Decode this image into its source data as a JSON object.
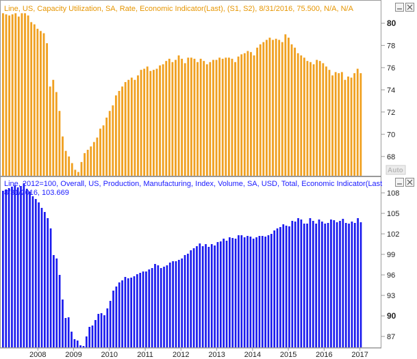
{
  "chart_data": [
    {
      "type": "bar",
      "legend": "Line, US, Capacity Utilization, SA, Rate, Economic Indicator(Last), (S1, S2), 8/31/2016, 75.500, N/A, N/A",
      "color": "#f0a020",
      "y_ticks": [
        "68",
        "70",
        "72",
        "74",
        "76",
        "78",
        "80"
      ],
      "highlighted_tick": "80",
      "ylim": [
        66.2,
        81.6
      ],
      "auto_label": "Auto",
      "values": [
        80.9,
        80.8,
        80.7,
        80.8,
        80.9,
        80.6,
        80.9,
        80.9,
        80.7,
        80.1,
        79.9,
        79.5,
        79.3,
        79.1,
        78.2,
        74.3,
        74.9,
        73.8,
        72.1,
        69.8,
        68.5,
        68.0,
        67.4,
        66.8,
        66.6,
        67.5,
        68.3,
        68.6,
        68.9,
        69.3,
        69.7,
        70.5,
        70.8,
        71.5,
        72.1,
        72.6,
        73.5,
        73.9,
        74.3,
        74.7,
        74.9,
        75.1,
        74.9,
        75.3,
        75.8,
        75.9,
        76.1,
        75.7,
        75.8,
        75.9,
        76.2,
        76.3,
        76.6,
        76.8,
        76.5,
        76.7,
        77.1,
        76.8,
        76.4,
        76.9,
        76.9,
        76.8,
        76.5,
        76.8,
        76.6,
        76.3,
        76.5,
        76.7,
        76.7,
        76.9,
        76.8,
        76.9,
        76.9,
        76.8,
        76.5,
        77.0,
        77.2,
        77.3,
        77.5,
        77.4,
        77.1,
        77.8,
        78.1,
        78.3,
        78.5,
        78.7,
        78.5,
        78.6,
        78.5,
        78.3,
        79.0,
        78.7,
        78.1,
        77.8,
        77.3,
        77.1,
        76.9,
        76.6,
        76.5,
        76.3,
        76.7,
        76.6,
        76.4,
        76.1,
        75.8,
        75.3,
        75.6,
        75.5,
        75.6,
        74.9,
        75.2,
        75.1,
        75.5,
        75.9,
        75.5
      ]
    },
    {
      "type": "bar",
      "legend_line1": "Line, 2012=100, Overall, US, Production, Manufacturing, Index, Volume, SA, USD, Total, Economic Indicator(Last",
      "legend_line2": "8/31/2016, 103.669",
      "color": "#1a1aee",
      "y_ticks": [
        "87",
        "90",
        "93",
        "96",
        "99",
        "102",
        "105",
        "108"
      ],
      "highlighted_tick": "90",
      "ylim": [
        85.4,
        110.0
      ],
      "x_ticks": [
        "2008",
        "2009",
        "2010",
        "2011",
        "2012",
        "2013",
        "2014",
        "2015",
        "2016",
        "2017"
      ],
      "values": [
        108.3,
        108.5,
        108.7,
        108.9,
        109.1,
        108.8,
        109.0,
        109.4,
        108.6,
        108.2,
        107.5,
        107.1,
        106.6,
        105.8,
        105.2,
        104.3,
        102.8,
        98.9,
        98.4,
        96.0,
        92.4,
        89.7,
        89.8,
        87.7,
        86.6,
        86.4,
        85.7,
        85.6,
        87.0,
        88.4,
        88.6,
        89.4,
        90.3,
        90.4,
        90.1,
        91.1,
        92.2,
        93.7,
        94.3,
        94.9,
        95.2,
        95.7,
        95.5,
        95.6,
        95.8,
        96.1,
        96.3,
        96.5,
        96.5,
        96.8,
        97.0,
        97.6,
        97.4,
        97.0,
        97.2,
        97.4,
        97.8,
        98.0,
        98.0,
        98.2,
        98.4,
        98.9,
        99.1,
        99.6,
        99.9,
        100.2,
        100.6,
        100.2,
        100.5,
        100.1,
        100.5,
        100.3,
        100.8,
        100.9,
        101.3,
        101.0,
        101.5,
        101.4,
        101.3,
        101.8,
        101.8,
        101.5,
        101.7,
        101.6,
        101.3,
        101.5,
        101.7,
        101.7,
        101.6,
        101.8,
        102.0,
        102.5,
        102.8,
        103.0,
        103.4,
        103.2,
        103.1,
        103.9,
        103.8,
        104.3,
        104.1,
        103.5,
        103.5,
        104.3,
        103.9,
        103.5,
        104.1,
        103.8,
        103.5,
        103.6,
        104.1,
        104.0,
        103.7,
        103.9,
        104.2,
        103.6,
        103.5,
        103.8,
        103.6,
        104.3,
        103.7
      ]
    }
  ]
}
